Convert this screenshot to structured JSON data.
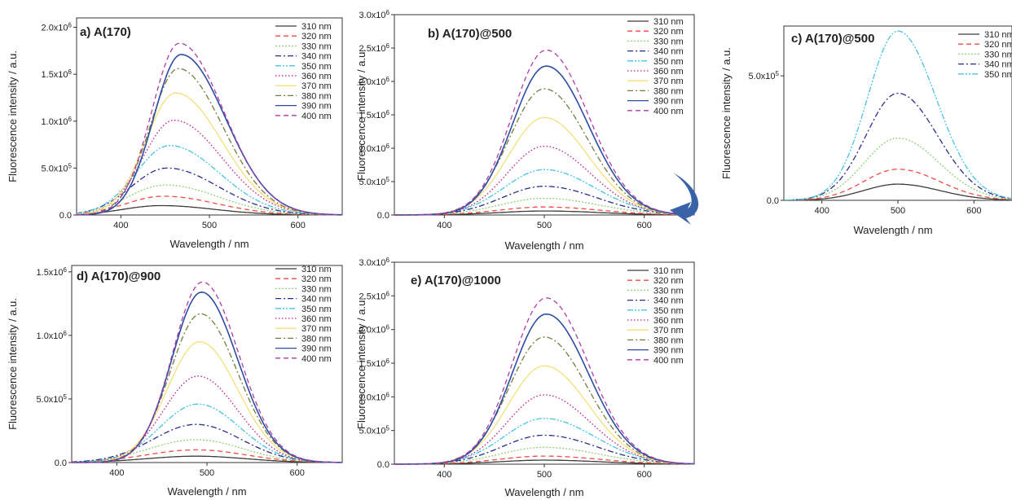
{
  "figure": {
    "arrow_color": "#3a62a8"
  },
  "wavelength_axis_label": "Wavelength / nm",
  "intensity_axis_label": "Fluorescence intensity / a.u.",
  "series_styles": [
    {
      "name": "310 nm",
      "color": "#3c3c3c",
      "dash": "solid"
    },
    {
      "name": "320 nm",
      "color": "#f24b43",
      "dash": "dash"
    },
    {
      "name": "330 nm",
      "color": "#8fd17a",
      "dash": "dot"
    },
    {
      "name": "340 nm",
      "color": "#2b2d8a",
      "dash": "dashdot"
    },
    {
      "name": "350 nm",
      "color": "#46c4e0",
      "dash": "dashdotdot"
    },
    {
      "name": "360 nm",
      "color": "#c2197f",
      "dash": "shortdot"
    },
    {
      "name": "370 nm",
      "color": "#f3e07a",
      "dash": "solid"
    },
    {
      "name": "380 nm",
      "color": "#7a7a3c",
      "dash": "dashdot"
    },
    {
      "name": "390 nm",
      "color": "#2d4ca3",
      "dash": "solid"
    },
    {
      "name": "400 nm",
      "color": "#b13ca8",
      "dash": "dash"
    }
  ],
  "chart_data": [
    {
      "id": "a",
      "type": "line",
      "title": "a) A(170)",
      "xlabel": "Wavelength / nm",
      "ylabel": "Fluorescence intensity / a.u.",
      "xlim": [
        350,
        650
      ],
      "ylim": [
        0,
        2100000
      ],
      "x_ticks": [
        400,
        500,
        600
      ],
      "x_tick_labels": [
        "400",
        "500",
        "600"
      ],
      "y_ticks": [
        0,
        500000,
        1000000,
        1500000,
        2000000
      ],
      "y_tick_labels": [
        "0.0",
        "5.0x10^5",
        "1.0x10^6",
        "1.5x10^6",
        "2.0x10^6"
      ],
      "legend": "top-right",
      "series": [
        {
          "name": "310 nm",
          "peak_x": 445,
          "peak_y": 100000,
          "left_w": 42,
          "right_w": 60
        },
        {
          "name": "320 nm",
          "peak_x": 448,
          "peak_y": 200000,
          "left_w": 42,
          "right_w": 60
        },
        {
          "name": "330 nm",
          "peak_x": 450,
          "peak_y": 320000,
          "left_w": 42,
          "right_w": 60
        },
        {
          "name": "340 nm",
          "peak_x": 452,
          "peak_y": 500000,
          "left_w": 40,
          "right_w": 58
        },
        {
          "name": "350 nm",
          "peak_x": 455,
          "peak_y": 740000,
          "left_w": 38,
          "right_w": 56
        },
        {
          "name": "360 nm",
          "peak_x": 460,
          "peak_y": 1010000,
          "left_w": 35,
          "right_w": 54
        },
        {
          "name": "370 nm",
          "peak_x": 462,
          "peak_y": 1300000,
          "left_w": 34,
          "right_w": 52
        },
        {
          "name": "380 nm",
          "peak_x": 465,
          "peak_y": 1560000,
          "left_w": 32,
          "right_w": 50
        },
        {
          "name": "390 nm",
          "peak_x": 468,
          "peak_y": 1710000,
          "left_w": 31,
          "right_w": 50
        },
        {
          "name": "400 nm",
          "peak_x": 466,
          "peak_y": 1830000,
          "left_w": 31,
          "right_w": 50
        }
      ]
    },
    {
      "id": "b",
      "type": "line",
      "title": "b) A(170)@500",
      "xlabel": "Wavelength / nm",
      "ylabel": "Fluorescence intensity / a.u.",
      "xlim": [
        350,
        650
      ],
      "ylim": [
        0,
        3000000
      ],
      "x_ticks": [
        400,
        500,
        600
      ],
      "x_tick_labels": [
        "400",
        "500",
        "600"
      ],
      "y_ticks": [
        0,
        500000,
        1000000,
        1500000,
        2000000,
        2500000,
        3000000
      ],
      "y_tick_labels": [
        "0.0",
        "5.0x10^5",
        "1.0x10^6",
        "1.5x10^6",
        "2.0x10^6",
        "2.5x10^6",
        "3.0x10^6"
      ],
      "legend": "top-right",
      "series": [
        {
          "name": "310 nm",
          "peak_x": 500,
          "peak_y": 60000,
          "left_w": 45,
          "right_w": 55
        },
        {
          "name": "320 nm",
          "peak_x": 500,
          "peak_y": 120000,
          "left_w": 45,
          "right_w": 55
        },
        {
          "name": "330 nm",
          "peak_x": 500,
          "peak_y": 250000,
          "left_w": 44,
          "right_w": 54
        },
        {
          "name": "340 nm",
          "peak_x": 500,
          "peak_y": 430000,
          "left_w": 42,
          "right_w": 52
        },
        {
          "name": "350 nm",
          "peak_x": 500,
          "peak_y": 680000,
          "left_w": 40,
          "right_w": 50
        },
        {
          "name": "360 nm",
          "peak_x": 500,
          "peak_y": 1030000,
          "left_w": 37,
          "right_w": 46
        },
        {
          "name": "370 nm",
          "peak_x": 500,
          "peak_y": 1460000,
          "left_w": 36,
          "right_w": 44
        },
        {
          "name": "380 nm",
          "peak_x": 500,
          "peak_y": 1890000,
          "left_w": 35,
          "right_w": 43
        },
        {
          "name": "390 nm",
          "peak_x": 502,
          "peak_y": 2230000,
          "left_w": 34,
          "right_w": 42
        },
        {
          "name": "400 nm",
          "peak_x": 502,
          "peak_y": 2470000,
          "left_w": 34,
          "right_w": 42
        }
      ]
    },
    {
      "id": "c",
      "type": "line",
      "title": "c) A(170)@500",
      "xlabel": "Wavelength / nm",
      "ylabel": "Fluorescence intensity / a.u.",
      "xlim": [
        350,
        650
      ],
      "ylim": [
        0,
        700000
      ],
      "x_ticks": [
        400,
        500,
        600
      ],
      "x_tick_labels": [
        "400",
        "500",
        "600"
      ],
      "y_ticks": [
        0,
        500000
      ],
      "y_tick_labels": [
        "0.0",
        "5.0x10^5"
      ],
      "legend": "top-right",
      "series": [
        {
          "name": "310 nm",
          "peak_x": 500,
          "peak_y": 65000,
          "left_w": 45,
          "right_w": 55
        },
        {
          "name": "320 nm",
          "peak_x": 500,
          "peak_y": 125000,
          "left_w": 45,
          "right_w": 55
        },
        {
          "name": "330 nm",
          "peak_x": 500,
          "peak_y": 250000,
          "left_w": 44,
          "right_w": 54
        },
        {
          "name": "340 nm",
          "peak_x": 500,
          "peak_y": 430000,
          "left_w": 42,
          "right_w": 52
        },
        {
          "name": "350 nm",
          "peak_x": 500,
          "peak_y": 680000,
          "left_w": 40,
          "right_w": 50
        }
      ]
    },
    {
      "id": "d",
      "type": "line",
      "title": "d) A(170)@900",
      "xlabel": "Wavelength / nm",
      "ylabel": "Fluorescence intensity / a.u.",
      "xlim": [
        350,
        650
      ],
      "ylim": [
        0,
        1550000
      ],
      "x_ticks": [
        400,
        500,
        600
      ],
      "x_tick_labels": [
        "400",
        "500",
        "600"
      ],
      "y_ticks": [
        0,
        500000,
        1000000,
        1500000
      ],
      "y_tick_labels": [
        "0.0",
        "5.0x10^5",
        "1.0x10^6",
        "1.5x10^6"
      ],
      "legend": "top-right",
      "series": [
        {
          "name": "310 nm",
          "peak_x": 488,
          "peak_y": 50000,
          "left_w": 55,
          "right_w": 55
        },
        {
          "name": "320 nm",
          "peak_x": 488,
          "peak_y": 100000,
          "left_w": 55,
          "right_w": 55
        },
        {
          "name": "330 nm",
          "peak_x": 488,
          "peak_y": 180000,
          "left_w": 52,
          "right_w": 52
        },
        {
          "name": "340 nm",
          "peak_x": 488,
          "peak_y": 300000,
          "left_w": 48,
          "right_w": 50
        },
        {
          "name": "350 nm",
          "peak_x": 490,
          "peak_y": 460000,
          "left_w": 42,
          "right_w": 46
        },
        {
          "name": "360 nm",
          "peak_x": 490,
          "peak_y": 680000,
          "left_w": 38,
          "right_w": 44
        },
        {
          "name": "370 nm",
          "peak_x": 492,
          "peak_y": 950000,
          "left_w": 36,
          "right_w": 42
        },
        {
          "name": "380 nm",
          "peak_x": 493,
          "peak_y": 1170000,
          "left_w": 34,
          "right_w": 41
        },
        {
          "name": "390 nm",
          "peak_x": 494,
          "peak_y": 1340000,
          "left_w": 33,
          "right_w": 40
        },
        {
          "name": "400 nm",
          "peak_x": 495,
          "peak_y": 1420000,
          "left_w": 33,
          "right_w": 40
        }
      ]
    },
    {
      "id": "e",
      "type": "line",
      "title": "e) A(170)@1000",
      "xlabel": "Wavelength / nm",
      "ylabel": "Fluorescence intensity / a.u.",
      "xlim": [
        350,
        650
      ],
      "ylim": [
        0,
        3000000
      ],
      "x_ticks": [
        400,
        500,
        600
      ],
      "x_tick_labels": [
        "400",
        "500",
        "600"
      ],
      "y_ticks": [
        0,
        500000,
        1000000,
        1500000,
        2000000,
        2500000,
        3000000
      ],
      "y_tick_labels": [
        "0.0",
        "5.0x10^5",
        "1.0x10^6",
        "1.5x10^6",
        "2.0x10^6",
        "2.5x10^6",
        "3.0x10^6"
      ],
      "legend": "top-right",
      "series": [
        {
          "name": "310 nm",
          "peak_x": 500,
          "peak_y": 60000,
          "left_w": 45,
          "right_w": 55
        },
        {
          "name": "320 nm",
          "peak_x": 500,
          "peak_y": 120000,
          "left_w": 45,
          "right_w": 55
        },
        {
          "name": "330 nm",
          "peak_x": 500,
          "peak_y": 250000,
          "left_w": 44,
          "right_w": 54
        },
        {
          "name": "340 nm",
          "peak_x": 500,
          "peak_y": 430000,
          "left_w": 42,
          "right_w": 52
        },
        {
          "name": "350 nm",
          "peak_x": 500,
          "peak_y": 680000,
          "left_w": 40,
          "right_w": 50
        },
        {
          "name": "360 nm",
          "peak_x": 500,
          "peak_y": 1030000,
          "left_w": 37,
          "right_w": 46
        },
        {
          "name": "370 nm",
          "peak_x": 500,
          "peak_y": 1460000,
          "left_w": 36,
          "right_w": 44
        },
        {
          "name": "380 nm",
          "peak_x": 500,
          "peak_y": 1890000,
          "left_w": 35,
          "right_w": 43
        },
        {
          "name": "390 nm",
          "peak_x": 502,
          "peak_y": 2230000,
          "left_w": 34,
          "right_w": 42
        },
        {
          "name": "400 nm",
          "peak_x": 502,
          "peak_y": 2470000,
          "left_w": 34,
          "right_w": 42
        }
      ]
    }
  ]
}
